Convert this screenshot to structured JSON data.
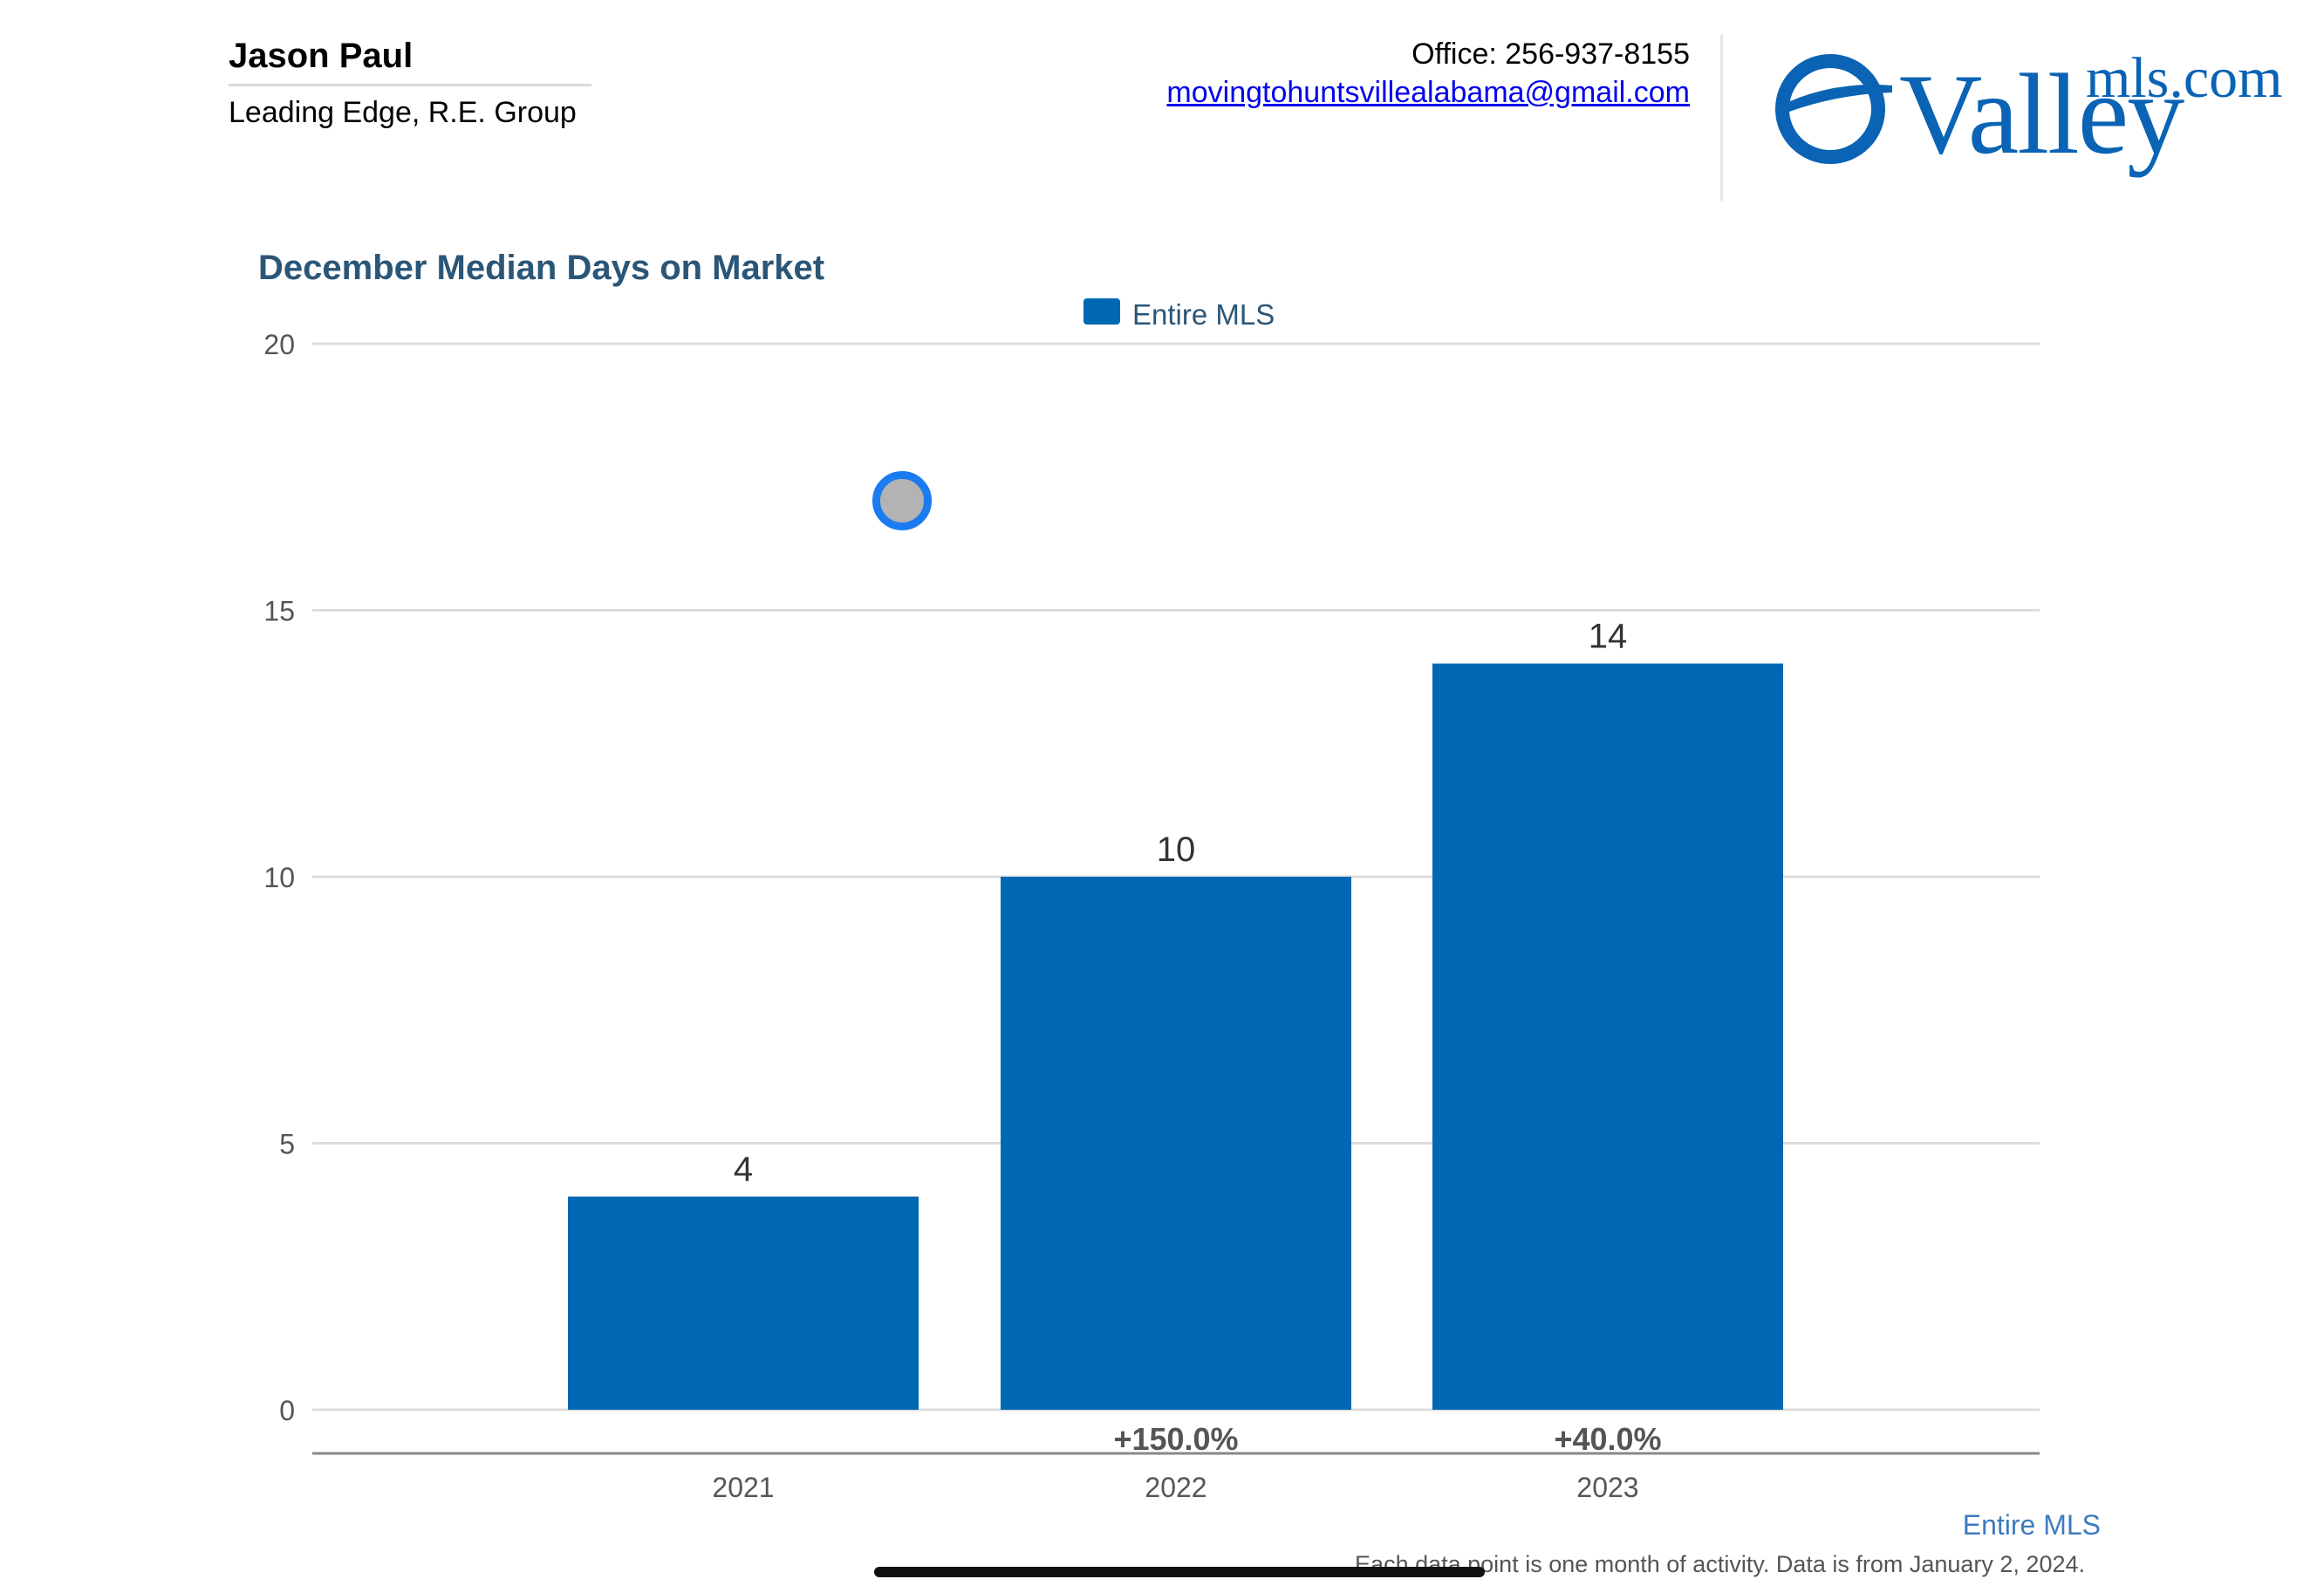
{
  "agent": {
    "name": "Jason Paul",
    "company": "Leading Edge, R.E. Group"
  },
  "contact": {
    "office": "Office: 256-937-8155",
    "email": "movingtohuntsvillealabama@gmail.com"
  },
  "logo": {
    "brand": "Valley",
    "dotcom": "mls.com",
    "color": "#0a63b4"
  },
  "chart_data": {
    "type": "bar",
    "title": "December Median Days on Market",
    "categories": [
      "2021",
      "2022",
      "2023"
    ],
    "series": [
      {
        "name": "Entire MLS",
        "values": [
          4,
          10,
          14
        ],
        "color": "#0068b3"
      }
    ],
    "change_labels": [
      "",
      "+150.0%",
      "+40.0%"
    ],
    "ylim": [
      0,
      20
    ],
    "yticks": [
      0,
      5,
      10,
      15,
      20
    ],
    "xlabel": "",
    "ylabel": "",
    "grid": true,
    "legend_position": "top-center"
  },
  "footer": {
    "series_label": "Entire MLS",
    "note": "Each data point is one month of activity. Data is from January 2, 2024."
  },
  "icons": {
    "cursor": "cursor-dot-icon"
  }
}
